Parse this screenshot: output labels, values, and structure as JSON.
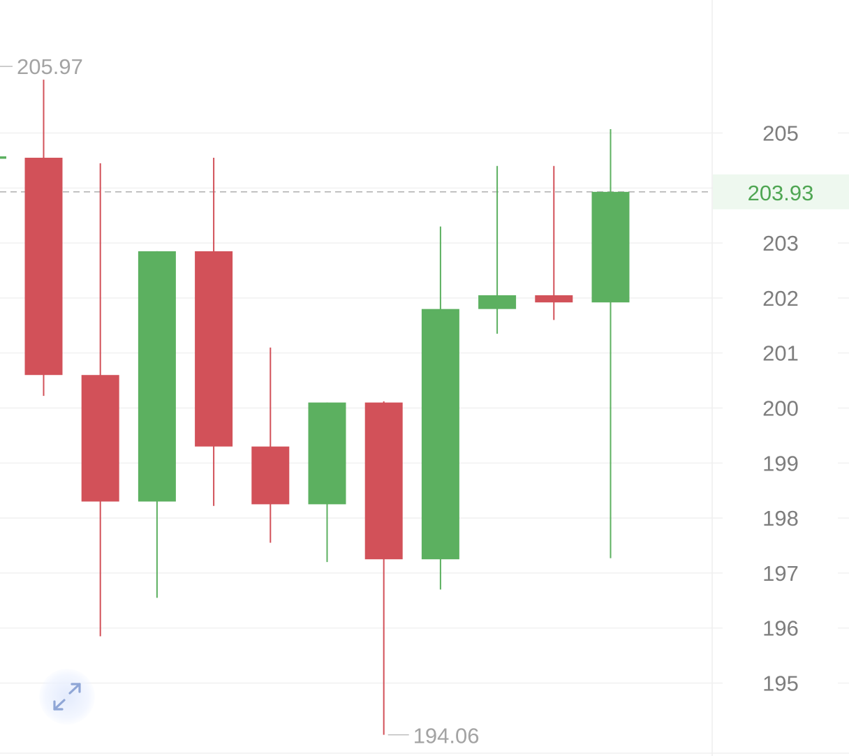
{
  "chart_data": {
    "type": "candlestick",
    "y_axis": {
      "ticks": [
        "205",
        "203",
        "202",
        "201",
        "200",
        "199",
        "198",
        "197",
        "196",
        "195"
      ],
      "tick_values": [
        205,
        203,
        202,
        201,
        200,
        199,
        198,
        197,
        196,
        195
      ],
      "position": "right",
      "range": [
        194.0,
        206.8
      ]
    },
    "grid": true,
    "candles": [
      {
        "open": 204.55,
        "high": 205.97,
        "low": 200.22,
        "close": 200.6
      },
      {
        "open": 200.6,
        "high": 204.45,
        "low": 195.85,
        "close": 198.3
      },
      {
        "open": 198.3,
        "high": 202.85,
        "low": 196.55,
        "close": 202.85
      },
      {
        "open": 202.85,
        "high": 204.55,
        "low": 198.22,
        "close": 199.3
      },
      {
        "open": 199.3,
        "high": 201.1,
        "low": 197.55,
        "close": 198.25
      },
      {
        "open": 198.25,
        "high": 200.1,
        "low": 197.2,
        "close": 200.1
      },
      {
        "open": 200.1,
        "high": 200.12,
        "low": 194.06,
        "close": 197.25
      },
      {
        "open": 197.25,
        "high": 203.3,
        "low": 196.7,
        "close": 201.8
      },
      {
        "open": 201.8,
        "high": 204.4,
        "low": 201.35,
        "close": 202.05
      },
      {
        "open": 202.05,
        "high": 204.4,
        "low": 201.6,
        "close": 201.92
      },
      {
        "open": 201.92,
        "high": 205.07,
        "low": 197.27,
        "close": 203.93
      }
    ],
    "annotations": {
      "high_label": "205.97",
      "low_label": "194.06"
    },
    "last_price": {
      "value": 203.93,
      "label": "203.93"
    },
    "colors": {
      "up": "#5cb060",
      "down": "#d25159",
      "last_price_text": "#4fa653",
      "last_price_bg": "#eef8ef",
      "grid": "#eeeeee",
      "dashed_line": "#b5b5b5",
      "axis_text": "#7d7d7d",
      "annotation_text": "#a3a3a3"
    }
  },
  "controls": {
    "expand_icon": "expand-arrows-icon"
  }
}
